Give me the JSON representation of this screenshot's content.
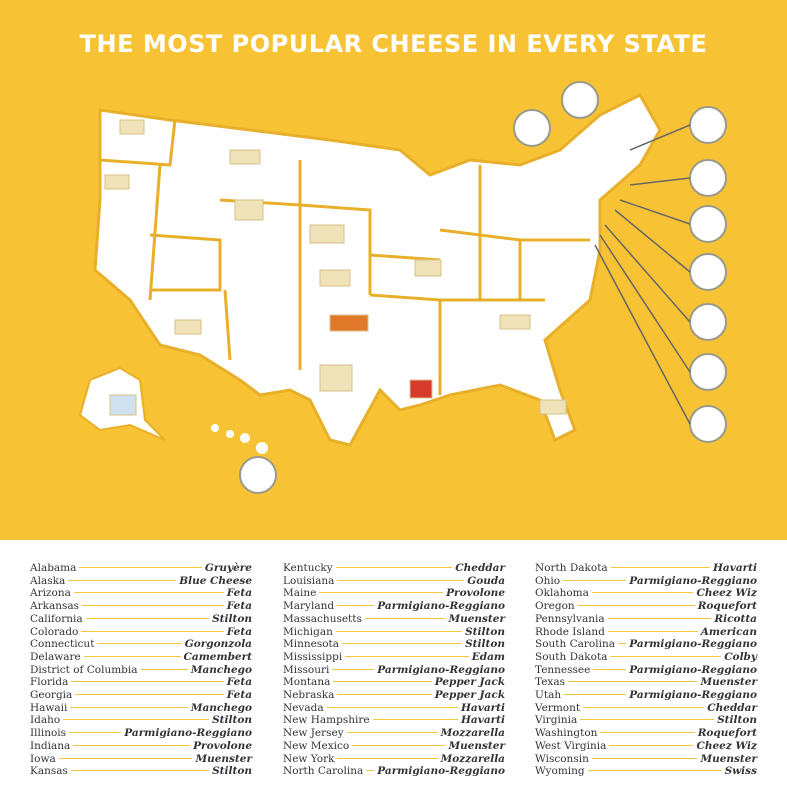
{
  "title": "THE MOST POPULAR CHEESE IN EVERY STATE",
  "states": [
    {
      "state": "Alabama",
      "cheese": "Gruyère"
    },
    {
      "state": "Alaska",
      "cheese": "Blue Cheese"
    },
    {
      "state": "Arizona",
      "cheese": "Feta"
    },
    {
      "state": "Arkansas",
      "cheese": "Feta"
    },
    {
      "state": "California",
      "cheese": "Stilton"
    },
    {
      "state": "Colorado",
      "cheese": "Feta"
    },
    {
      "state": "Connecticut",
      "cheese": "Gorgonzola"
    },
    {
      "state": "Delaware",
      "cheese": "Camembert"
    },
    {
      "state": "District of Columbia",
      "cheese": "Manchego"
    },
    {
      "state": "Florida",
      "cheese": "Feta"
    },
    {
      "state": "Georgia",
      "cheese": "Feta"
    },
    {
      "state": "Hawaii",
      "cheese": "Manchego"
    },
    {
      "state": "Idaho",
      "cheese": "Stilton"
    },
    {
      "state": "Illinois",
      "cheese": "Parmigiano-Reggiano"
    },
    {
      "state": "Indiana",
      "cheese": "Provolone"
    },
    {
      "state": "Iowa",
      "cheese": "Muenster"
    },
    {
      "state": "Kansas",
      "cheese": "Stilton"
    },
    {
      "state": "Kentucky",
      "cheese": "Cheddar"
    },
    {
      "state": "Louisiana",
      "cheese": "Gouda"
    },
    {
      "state": "Maine",
      "cheese": "Provolone"
    },
    {
      "state": "Maryland",
      "cheese": "Parmigiano-Reggiano"
    },
    {
      "state": "Massachusetts",
      "cheese": "Muenster"
    },
    {
      "state": "Michigan",
      "cheese": "Stilton"
    },
    {
      "state": "Minnesota",
      "cheese": "Stilton"
    },
    {
      "state": "Mississippi",
      "cheese": "Edam"
    },
    {
      "state": "Missouri",
      "cheese": "Parmigiano-Reggiano"
    },
    {
      "state": "Montana",
      "cheese": "Pepper Jack"
    },
    {
      "state": "Nebraska",
      "cheese": "Pepper Jack"
    },
    {
      "state": "Nevada",
      "cheese": "Havarti"
    },
    {
      "state": "New Hampshire",
      "cheese": "Havarti"
    },
    {
      "state": "New Jersey",
      "cheese": "Mozzarella"
    },
    {
      "state": "New Mexico",
      "cheese": "Muenster"
    },
    {
      "state": "New York",
      "cheese": "Mozzarella"
    },
    {
      "state": "North Carolina",
      "cheese": "Parmigiano-Reggiano"
    },
    {
      "state": "North Dakota",
      "cheese": "Havarti"
    },
    {
      "state": "Ohio",
      "cheese": "Parmigiano-Reggiano"
    },
    {
      "state": "Oklahoma",
      "cheese": "Cheez Wiz"
    },
    {
      "state": "Oregon",
      "cheese": "Roquefort"
    },
    {
      "state": "Pennsylvania",
      "cheese": "Ricotta"
    },
    {
      "state": "Rhode Island",
      "cheese": "American"
    },
    {
      "state": "South Carolina",
      "cheese": "Parmigiano-Reggiano"
    },
    {
      "state": "South Dakota",
      "cheese": "Colby"
    },
    {
      "state": "Tennessee",
      "cheese": "Parmigiano-Reggiano"
    },
    {
      "state": "Texas",
      "cheese": "Muenster"
    },
    {
      "state": "Utah",
      "cheese": "Parmigiano-Reggiano"
    },
    {
      "state": "Vermont",
      "cheese": "Cheddar"
    },
    {
      "state": "Virginia",
      "cheese": "Stilton"
    },
    {
      "state": "Washington",
      "cheese": "Roquefort"
    },
    {
      "state": "West Virginia",
      "cheese": "Cheez Wiz"
    },
    {
      "state": "Wisconsin",
      "cheese": "Muenster"
    },
    {
      "state": "Wyoming",
      "cheese": "Swiss"
    }
  ]
}
